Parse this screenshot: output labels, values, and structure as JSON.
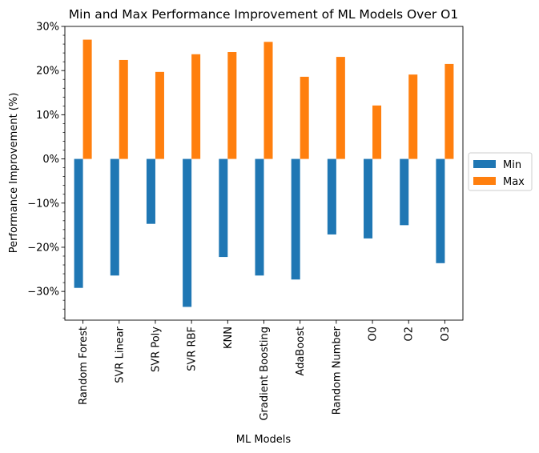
{
  "chart_data": {
    "type": "bar",
    "title": "Min and Max Performance Improvement of ML Models Over O1",
    "xlabel": "ML Models",
    "ylabel": "Performance Improvement (%)",
    "categories": [
      "Random Forest",
      "SVR Linear",
      "SVR Poly",
      "SVR RBF",
      "KNN",
      "Gradient Boosting",
      "AdaBoost",
      "Random Number",
      "O0",
      "O2",
      "O3"
    ],
    "series": [
      {
        "name": "Min",
        "color": "#1f77b4",
        "values": [
          -29.2,
          -26.4,
          -14.7,
          -33.5,
          -22.2,
          -26.4,
          -27.3,
          -17.1,
          -18.0,
          -15.0,
          -23.6
        ]
      },
      {
        "name": "Max",
        "color": "#ff7f0e",
        "values": [
          27.0,
          22.4,
          19.7,
          23.7,
          24.2,
          26.5,
          18.6,
          23.1,
          12.1,
          19.1,
          21.5
        ]
      }
    ],
    "ylim": [
      -36.5,
      30
    ],
    "yticks": [
      -30,
      -20,
      -10,
      0,
      10,
      20,
      30
    ],
    "ytick_labels": [
      "−30%",
      "−20%",
      "−10%",
      "0%",
      "10%",
      "20%",
      "30%"
    ],
    "grid": false,
    "legend_position": "center-right-outside"
  }
}
